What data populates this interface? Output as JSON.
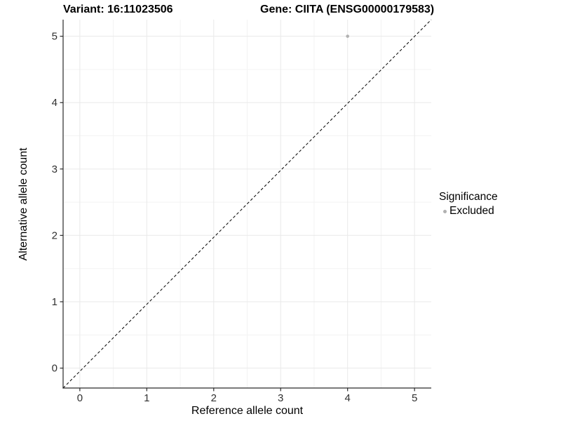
{
  "chart_data": {
    "type": "scatter",
    "titles": {
      "left": "Variant: 16:11023506",
      "right": "Gene: CIITA (ENSG00000179583)"
    },
    "xlabel": "Reference allele count",
    "ylabel": "Alternative allele count",
    "x_ticks": [
      0,
      1,
      2,
      3,
      4,
      5
    ],
    "y_ticks": [
      0,
      1,
      2,
      3,
      4,
      5
    ],
    "xlim": [
      0,
      5
    ],
    "ylim": [
      0,
      5
    ],
    "grid": "major and minor gridlines on white background",
    "identity_line": {
      "style": "dashed",
      "from": [
        0,
        0
      ],
      "to": [
        5,
        5
      ]
    },
    "points": [
      {
        "x": 4,
        "y": 5,
        "series": "Excluded"
      }
    ],
    "legend": {
      "title": "Significance",
      "position": "right",
      "entries": [
        {
          "label": "Excluded",
          "marker": "circle",
          "color": "#b1b1b1"
        }
      ]
    },
    "colors": {
      "point": "#b1b1b1",
      "grid_major": "#e9e9e9",
      "grid_minor": "#f3f3f3",
      "axis_line": "#2a2a2a",
      "tick_label": "#303030",
      "identity_line": "#000000"
    }
  }
}
